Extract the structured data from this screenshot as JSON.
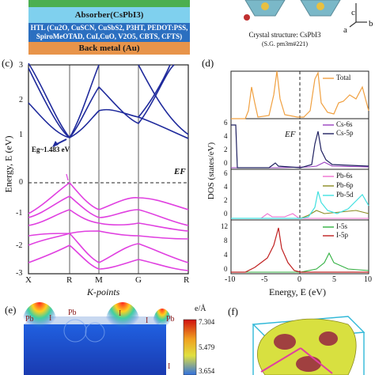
{
  "device": {
    "absorber": "Absorber(CsPbI3)",
    "htl_line1": "HTL (Cu2O, CuSCN, CuSbS2, P3HT, PEDOT:PSS,",
    "htl_line2": "SpiroMeOTAD, CuI,CuO, V2O5, CBTS, CFTS)",
    "back_metal": "Back metal (Au)",
    "colors": {
      "green": "#4caf50",
      "absorber": "#7fd0ee",
      "htl": "#2b6fc0",
      "metal": "#e8944a"
    }
  },
  "crystal": {
    "caption": "Crystal structure: CsPbI3",
    "space_group": "(S.G. pm3m#221)",
    "axis_c": "c",
    "axis_b": "b",
    "axis_a": "a"
  },
  "panel_c": {
    "label": "(c)",
    "ylabel": "Energy, E (eV)",
    "xlabel": "K-points",
    "kpoints": [
      "X",
      "R",
      "M",
      "G",
      "R"
    ],
    "yticks": [
      "3",
      "2",
      "1",
      "0",
      "-1",
      "-2",
      "-3"
    ],
    "gap_annotation": "Eg~1.483 eV",
    "fermi_label": "EF",
    "colors": {
      "conduction": "#1f2a9c",
      "valence": "#e040e0"
    }
  },
  "panel_d": {
    "label": "(d)",
    "ylabel": "DOS (states/eV)",
    "xlabel": "Energy, E (eV)",
    "xticks": [
      "-10",
      "-5",
      "0",
      "5",
      "10"
    ],
    "fermi_label": "EF",
    "subplots": [
      {
        "legend": [
          "Total"
        ],
        "yticks": []
      },
      {
        "legend": [
          "Cs-6s",
          "Cs-5p"
        ],
        "yticks": [
          "6",
          "4",
          "2",
          "0"
        ]
      },
      {
        "legend": [
          "Pb-6s",
          "Pb-6p",
          "Pb-5d"
        ],
        "yticks": [
          "6",
          "4",
          "2",
          "0"
        ]
      },
      {
        "legend": [
          "I-5s",
          "I-5p"
        ],
        "yticks": [
          "12",
          "8",
          "4",
          "0"
        ]
      }
    ],
    "colors": {
      "total": "#f0a040",
      "cs6s": "#9a40c0",
      "cs5p": "#1f2060",
      "pb6s": "#f070d0",
      "pb6p": "#8a8a20",
      "pb5d": "#40e0e0",
      "i5s": "#30b040",
      "i5p": "#c02020"
    }
  },
  "panel_e": {
    "label": "(e)",
    "unit": "e/Å",
    "atom_labels": [
      "Pb",
      "I",
      "Pb",
      "I",
      "Pb",
      "I",
      "I"
    ],
    "scale": [
      "7.304",
      "5.479",
      "3.654"
    ]
  },
  "panel_f": {
    "label": "(f)"
  }
}
